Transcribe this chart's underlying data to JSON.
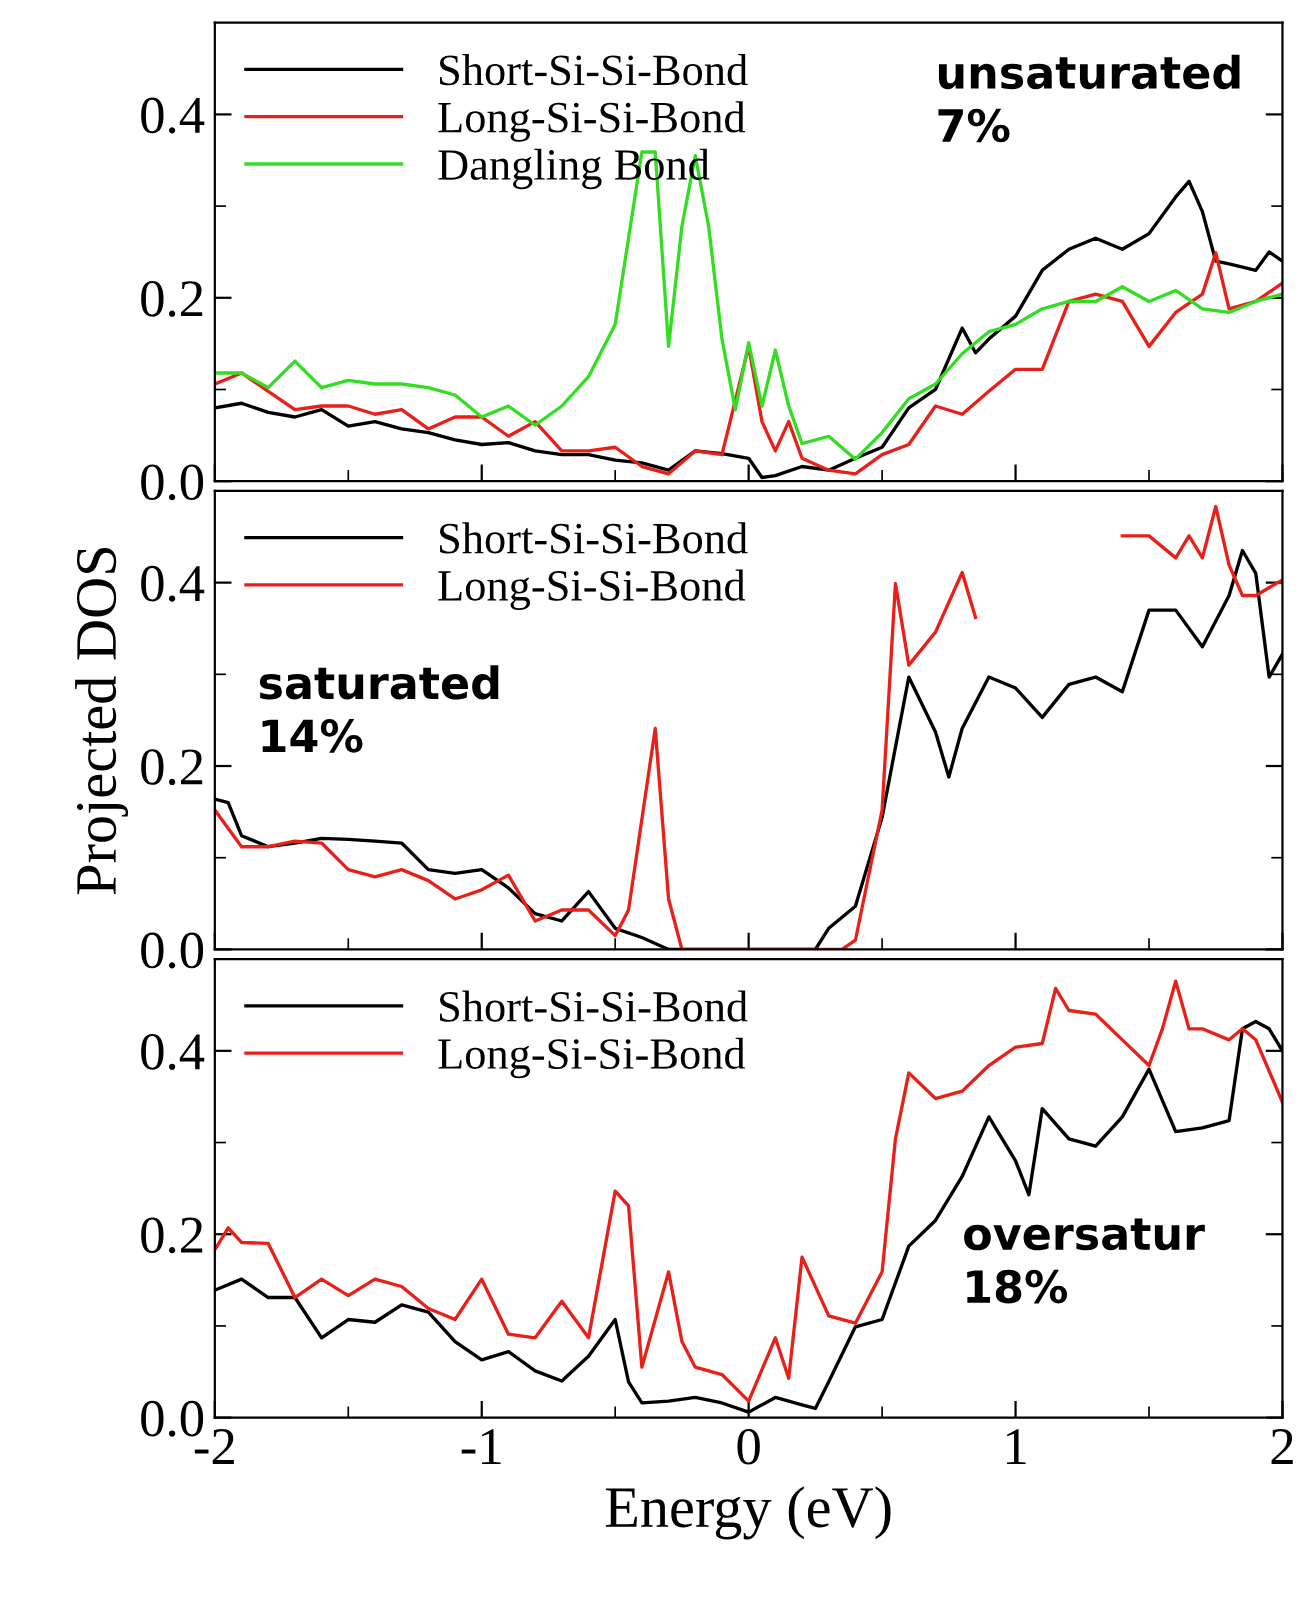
{
  "chart_data": [
    {
      "type": "line",
      "xlim": [
        -2,
        2
      ],
      "ylim": [
        0,
        0.5
      ],
      "tick_labels": "y",
      "legend": "top left",
      "grid": false,
      "marker": "none",
      "line_style": "solid",
      "xticks": [
        -2,
        {
          "value": -1.5,
          "label": null
        },
        -1,
        {
          "value": -0.5,
          "label": null
        },
        0,
        {
          "value": 0.5,
          "label": null
        },
        1,
        {
          "value": 1.5,
          "label": null
        },
        2
      ],
      "yticks": [
        {
          "value": 0.0,
          "label": "0.0"
        },
        {
          "value": 0.1,
          "label": null
        },
        {
          "value": 0.2,
          "label": "0.2"
        },
        {
          "value": 0.3,
          "label": null
        },
        {
          "value": 0.4,
          "label": "0.4"
        }
      ],
      "annotations": [
        "unsaturated\n7%"
      ],
      "series": [
        {
          "name": "Short-Si-Si-Bond",
          "color": "#000000",
          "x": [
            -2,
            -1.9,
            -1.8,
            -1.7,
            -1.6,
            -1.5,
            -1.4,
            -1.3,
            -1.2,
            -1.1,
            -1.0,
            -0.9,
            -0.8,
            -0.7,
            -0.6,
            -0.5,
            -0.4,
            -0.3,
            -0.2,
            -0.1,
            0,
            0.05,
            0.1,
            0.2,
            0.3,
            0.4,
            0.5,
            0.6,
            0.7,
            0.8,
            0.85,
            0.9,
            1.0,
            1.1,
            1.2,
            1.3,
            1.4,
            1.5,
            1.6,
            1.65,
            1.7,
            1.75,
            1.8,
            1.9,
            1.95,
            2.0
          ],
          "values": [
            0.08,
            0.085,
            0.075,
            0.07,
            0.078,
            0.06,
            0.065,
            0.057,
            0.053,
            0.045,
            0.04,
            0.042,
            0.033,
            0.029,
            0.029,
            0.023,
            0.02,
            0.012,
            0.033,
            0.03,
            0.025,
            0.004,
            0.006,
            0.016,
            0.012,
            0.025,
            0.037,
            0.08,
            0.1,
            0.167,
            0.14,
            0.155,
            0.18,
            0.23,
            0.253,
            0.265,
            0.253,
            0.27,
            0.31,
            0.327,
            0.294,
            0.24,
            0.237,
            0.23,
            0.25,
            0.24
          ]
        },
        {
          "name": "Long-Si-Si-Bond",
          "color": "#e8201a",
          "x": [
            -2,
            -1.9,
            -1.8,
            -1.7,
            -1.6,
            -1.5,
            -1.4,
            -1.3,
            -1.2,
            -1.1,
            -1.0,
            -0.9,
            -0.8,
            -0.7,
            -0.6,
            -0.5,
            -0.4,
            -0.3,
            -0.2,
            -0.1,
            0,
            0.05,
            0.1,
            0.15,
            0.2,
            0.3,
            0.4,
            0.5,
            0.6,
            0.7,
            0.8,
            0.9,
            1.0,
            1.1,
            1.2,
            1.3,
            1.4,
            1.5,
            1.6,
            1.7,
            1.75,
            1.8,
            1.9,
            2.0
          ],
          "values": [
            0.106,
            0.118,
            0.098,
            0.078,
            0.082,
            0.082,
            0.073,
            0.078,
            0.057,
            0.07,
            0.07,
            0.049,
            0.065,
            0.033,
            0.033,
            0.037,
            0.016,
            0.008,
            0.033,
            0.029,
            0.147,
            0.065,
            0.033,
            0.065,
            0.025,
            0.012,
            0.008,
            0.029,
            0.04,
            0.082,
            0.073,
            0.098,
            0.122,
            0.122,
            0.196,
            0.204,
            0.196,
            0.147,
            0.184,
            0.204,
            0.249,
            0.188,
            0.196,
            0.216
          ]
        },
        {
          "name": "Dangling Bond",
          "color": "#33dd22",
          "x": [
            -2,
            -1.9,
            -1.8,
            -1.7,
            -1.6,
            -1.5,
            -1.4,
            -1.3,
            -1.2,
            -1.1,
            -1.0,
            -0.9,
            -0.8,
            -0.7,
            -0.6,
            -0.5,
            -0.4,
            -0.35,
            -0.3,
            -0.25,
            -0.2,
            -0.15,
            -0.1,
            -0.05,
            0,
            0.05,
            0.1,
            0.15,
            0.2,
            0.3,
            0.4,
            0.5,
            0.6,
            0.7,
            0.8,
            0.9,
            1.0,
            1.1,
            1.2,
            1.3,
            1.4,
            1.5,
            1.6,
            1.7,
            1.8,
            1.9,
            2.0
          ],
          "values": [
            0.118,
            0.118,
            0.102,
            0.131,
            0.102,
            0.11,
            0.106,
            0.106,
            0.102,
            0.094,
            0.07,
            0.082,
            0.061,
            0.082,
            0.114,
            0.171,
            0.359,
            0.359,
            0.147,
            0.278,
            0.355,
            0.278,
            0.155,
            0.078,
            0.151,
            0.082,
            0.143,
            0.082,
            0.041,
            0.049,
            0.024,
            0.053,
            0.09,
            0.106,
            0.139,
            0.163,
            0.171,
            0.188,
            0.196,
            0.196,
            0.212,
            0.196,
            0.208,
            0.188,
            0.184,
            0.196,
            0.204
          ]
        }
      ]
    },
    {
      "type": "line",
      "xlim": [
        -2,
        2
      ],
      "ylim": [
        0,
        0.5
      ],
      "tick_labels": "y",
      "legend": "top left",
      "grid": false,
      "marker": "none",
      "line_style": "solid",
      "ylabel": "Projected DOS",
      "xticks": [
        -2,
        {
          "value": -1.5,
          "label": null
        },
        -1,
        {
          "value": -0.5,
          "label": null
        },
        0,
        {
          "value": 0.5,
          "label": null
        },
        1,
        {
          "value": 1.5,
          "label": null
        },
        2
      ],
      "yticks": [
        {
          "value": 0.0,
          "label": "0.0"
        },
        {
          "value": 0.1,
          "label": null
        },
        {
          "value": 0.2,
          "label": "0.2"
        },
        {
          "value": 0.3,
          "label": null
        },
        {
          "value": 0.4,
          "label": "0.4"
        }
      ],
      "annotations": [
        "saturated\n14%"
      ],
      "series": [
        {
          "name": "Short-Si-Si-Bond",
          "color": "#000000",
          "x": [
            -2,
            -1.95,
            -1.9,
            -1.8,
            -1.7,
            -1.6,
            -1.5,
            -1.4,
            -1.3,
            -1.2,
            -1.1,
            -1.0,
            -0.9,
            -0.8,
            -0.7,
            -0.6,
            -0.5,
            -0.4,
            -0.3,
            0.25,
            0.3,
            0.4,
            0.5,
            0.6,
            0.7,
            0.75,
            0.8,
            0.9,
            1.0,
            1.1,
            1.2,
            1.3,
            1.4,
            1.5,
            1.6,
            1.7,
            1.8,
            1.85,
            1.9,
            1.95,
            2.0
          ],
          "values": [
            0.164,
            0.16,
            0.124,
            0.112,
            0.116,
            0.121,
            0.12,
            0.118,
            0.116,
            0.087,
            0.083,
            0.087,
            0.067,
            0.039,
            0.031,
            0.063,
            0.023,
            0.013,
            0.0,
            0.0,
            0.023,
            0.047,
            0.144,
            0.297,
            0.237,
            0.188,
            0.241,
            0.297,
            0.285,
            0.253,
            0.289,
            0.297,
            0.281,
            0.37,
            0.37,
            0.33,
            0.386,
            0.435,
            0.41,
            0.297,
            0.322
          ]
        },
        {
          "name": "Long-Si-Si-Bond",
          "color": "#e8201a",
          "x": [
            -2,
            -1.9,
            -1.8,
            -1.7,
            -1.6,
            -1.5,
            -1.4,
            -1.3,
            -1.2,
            -1.1,
            -1.0,
            -0.9,
            -0.8,
            -0.7,
            -0.6,
            -0.5,
            -0.45,
            -0.35,
            -0.3,
            -0.25,
            0.35,
            0.4,
            0.5,
            0.55,
            0.6,
            0.7,
            0.8,
            0.85,
            0.95,
            1.4,
            1.5,
            1.6,
            1.65,
            1.7,
            1.75,
            1.8,
            1.85,
            1.9,
            2.0
          ],
          "values": [
            0.152,
            0.112,
            0.112,
            0.118,
            0.116,
            0.087,
            0.079,
            0.087,
            0.075,
            0.055,
            0.065,
            0.081,
            0.031,
            0.043,
            0.043,
            0.015,
            0.043,
            0.241,
            0.055,
            0.0,
            0.0,
            0.01,
            0.152,
            0.399,
            0.31,
            0.346,
            0.411,
            0.362,
            null,
            0.451,
            0.451,
            0.427,
            0.451,
            0.427,
            0.483,
            0.419,
            0.386,
            0.386,
            0.403
          ]
        }
      ]
    },
    {
      "type": "line",
      "xlim": [
        -2,
        2
      ],
      "ylim": [
        0,
        0.5
      ],
      "legend": "top left",
      "grid": false,
      "marker": "none",
      "line_style": "solid",
      "xlabel": "Energy (eV)",
      "xticks": [
        -2,
        {
          "value": -1.5,
          "label": null
        },
        -1,
        {
          "value": -0.5,
          "label": null
        },
        0,
        {
          "value": 0.5,
          "label": null
        },
        1,
        {
          "value": 1.5,
          "label": null
        },
        2
      ],
      "yticks": [
        {
          "value": 0.0,
          "label": "0.0"
        },
        {
          "value": 0.1,
          "label": null
        },
        {
          "value": 0.2,
          "label": "0.2"
        },
        {
          "value": 0.3,
          "label": null
        },
        {
          "value": 0.4,
          "label": "0.4"
        }
      ],
      "annotations": [
        "oversatur\n18%"
      ],
      "series": [
        {
          "name": "Short-Si-Si-Bond",
          "color": "#000000",
          "x": [
            -2,
            -1.9,
            -1.8,
            -1.7,
            -1.6,
            -1.5,
            -1.4,
            -1.3,
            -1.2,
            -1.1,
            -1.0,
            -0.9,
            -0.8,
            -0.7,
            -0.6,
            -0.5,
            -0.45,
            -0.4,
            -0.3,
            -0.2,
            -0.1,
            0,
            0.1,
            0.2,
            0.25,
            0.3,
            0.4,
            0.5,
            0.6,
            0.7,
            0.8,
            0.9,
            1.0,
            1.05,
            1.1,
            1.2,
            1.3,
            1.4,
            1.5,
            1.6,
            1.7,
            1.8,
            1.85,
            1.9,
            1.95,
            2.0
          ],
          "values": [
            0.139,
            0.151,
            0.131,
            0.131,
            0.087,
            0.107,
            0.104,
            0.123,
            0.115,
            0.083,
            0.063,
            0.072,
            0.051,
            0.04,
            0.067,
            0.107,
            0.039,
            0.016,
            0.018,
            0.022,
            0.016,
            0.006,
            0.022,
            0.014,
            0.01,
            0.039,
            0.099,
            0.107,
            0.187,
            0.215,
            0.263,
            0.328,
            0.28,
            0.243,
            0.337,
            0.304,
            0.296,
            0.328,
            0.38,
            0.312,
            0.316,
            0.324,
            0.424,
            0.432,
            0.424,
            0.4
          ]
        },
        {
          "name": "Long-Si-Si-Bond",
          "color": "#e8201a",
          "x": [
            -2,
            -1.95,
            -1.9,
            -1.8,
            -1.7,
            -1.6,
            -1.5,
            -1.4,
            -1.3,
            -1.2,
            -1.1,
            -1.0,
            -0.9,
            -0.8,
            -0.7,
            -0.6,
            -0.5,
            -0.45,
            -0.4,
            -0.3,
            -0.25,
            -0.2,
            -0.1,
            0,
            0.1,
            0.15,
            0.2,
            0.3,
            0.4,
            0.5,
            0.55,
            0.6,
            0.7,
            0.8,
            0.9,
            1.0,
            1.1,
            1.15,
            1.2,
            1.3,
            1.4,
            1.5,
            1.55,
            1.6,
            1.65,
            1.7,
            1.8,
            1.85,
            1.9,
            2.0
          ],
          "values": [
            0.183,
            0.207,
            0.191,
            0.19,
            0.131,
            0.151,
            0.133,
            0.151,
            0.143,
            0.119,
            0.107,
            0.151,
            0.091,
            0.087,
            0.127,
            0.087,
            0.247,
            0.231,
            0.055,
            0.159,
            0.083,
            0.055,
            0.047,
            0.018,
            0.087,
            0.043,
            0.175,
            0.111,
            0.103,
            0.159,
            0.304,
            0.376,
            0.348,
            0.356,
            0.384,
            0.404,
            0.408,
            0.468,
            0.444,
            0.44,
            0.412,
            0.384,
            0.424,
            0.476,
            0.424,
            0.424,
            0.412,
            0.424,
            0.412,
            0.344
          ]
        }
      ]
    }
  ]
}
